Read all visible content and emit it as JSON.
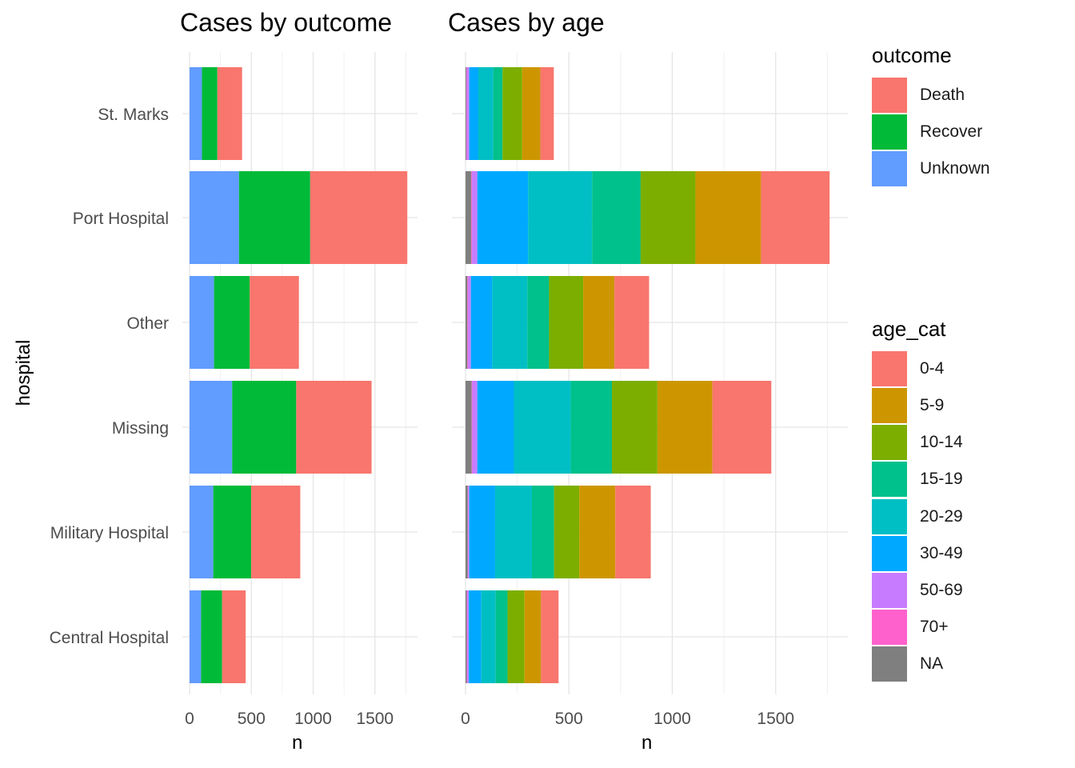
{
  "chart_data": [
    {
      "type": "bar",
      "orientation": "horizontal",
      "stacked": true,
      "title": "Cases by outcome",
      "xlabel": "n",
      "ylabel": "hospital",
      "xlim": [
        0,
        1830
      ],
      "x_ticks": [
        0,
        500,
        1000,
        1500
      ],
      "grid": true,
      "categories": [
        "St. Marks",
        "Port Hospital",
        "Other",
        "Missing",
        "Military Hospital",
        "Central Hospital"
      ],
      "series": [
        {
          "name": "Unknown",
          "color": "#619CFF",
          "values": [
            100,
            400,
            198,
            345,
            192,
            93
          ]
        },
        {
          "name": "Recover",
          "color": "#00BA38",
          "values": [
            125,
            576,
            289,
            518,
            306,
            170
          ]
        },
        {
          "name": "Death",
          "color": "#F8766D",
          "values": [
            200,
            786,
            398,
            610,
            398,
            191
          ]
        }
      ]
    },
    {
      "type": "bar",
      "orientation": "horizontal",
      "stacked": true,
      "title": "Cases by age",
      "xlabel": "n",
      "ylabel": "",
      "xlim": [
        0,
        1830
      ],
      "x_ticks": [
        0,
        500,
        1000,
        1500
      ],
      "grid": true,
      "categories": [
        "St. Marks",
        "Port Hospital",
        "Other",
        "Missing",
        "Military Hospital",
        "Central Hospital"
      ],
      "series": [
        {
          "name": "NA",
          "color": "#7F7F7F",
          "values": [
            4,
            28,
            9,
            30,
            11,
            6
          ]
        },
        {
          "name": "70+",
          "color": "#FF61CC",
          "values": [
            2,
            3,
            3,
            3,
            2,
            2
          ]
        },
        {
          "name": "50-69",
          "color": "#C77CFF",
          "values": [
            12,
            26,
            14,
            24,
            5,
            8
          ]
        },
        {
          "name": "30-49",
          "color": "#00A9FF",
          "values": [
            44,
            246,
            103,
            177,
            125,
            60
          ]
        },
        {
          "name": "20-29",
          "color": "#00BFC4",
          "values": [
            72,
            309,
            170,
            275,
            178,
            70
          ]
        },
        {
          "name": "15-19",
          "color": "#00C08B",
          "values": [
            45,
            235,
            105,
            199,
            107,
            57
          ]
        },
        {
          "name": "10-14",
          "color": "#7CAE00",
          "values": [
            95,
            265,
            165,
            220,
            122,
            82
          ]
        },
        {
          "name": "5-9",
          "color": "#CD9600",
          "values": [
            88,
            317,
            151,
            266,
            174,
            80
          ]
        },
        {
          "name": "0-4",
          "color": "#F8766D",
          "values": [
            65,
            332,
            168,
            285,
            172,
            85
          ]
        }
      ]
    }
  ],
  "legends": {
    "outcome": {
      "title": "outcome",
      "items": [
        {
          "label": "Death",
          "color": "#F8766D"
        },
        {
          "label": "Recover",
          "color": "#00BA38"
        },
        {
          "label": "Unknown",
          "color": "#619CFF"
        }
      ]
    },
    "age_cat": {
      "title": "age_cat",
      "items": [
        {
          "label": "0-4",
          "color": "#F8766D"
        },
        {
          "label": "5-9",
          "color": "#CD9600"
        },
        {
          "label": "10-14",
          "color": "#7CAE00"
        },
        {
          "label": "15-19",
          "color": "#00C08B"
        },
        {
          "label": "20-29",
          "color": "#00BFC4"
        },
        {
          "label": "30-49",
          "color": "#00A9FF"
        },
        {
          "label": "50-69",
          "color": "#C77CFF"
        },
        {
          "label": "70+",
          "color": "#FF61CC"
        },
        {
          "label": "NA",
          "color": "#7F7F7F"
        }
      ]
    }
  }
}
